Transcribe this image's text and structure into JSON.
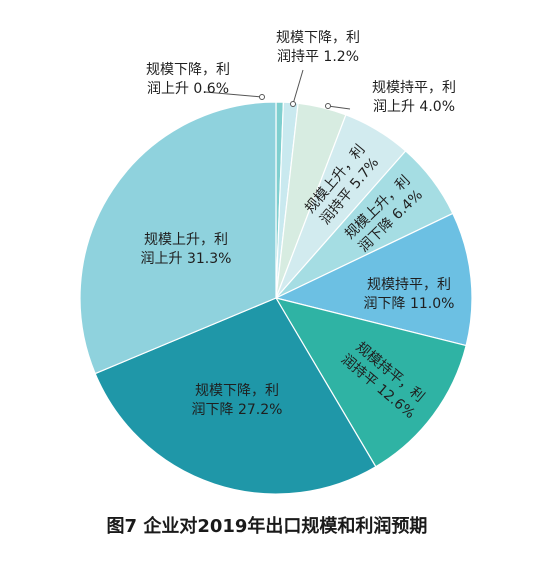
{
  "chart_data": {
    "type": "pie",
    "title": "图7  企业对2019年出口规模和利润预期",
    "slices": [
      {
        "line1": "规模下降，利",
        "line2": "润上升 0.6%",
        "value": 0.6,
        "color": "#7fcfcf"
      },
      {
        "line1": "规模下降，利",
        "line2": "润持平 1.2%",
        "value": 1.2,
        "color": "#c9e9ef"
      },
      {
        "line1": "规模持平，利",
        "line2": "润上升 4.0%",
        "value": 4.0,
        "color": "#d7ece1"
      },
      {
        "line1": "规模上升，利",
        "line2": "润持平 5.7%",
        "value": 5.7,
        "color": "#d2ebef"
      },
      {
        "line1": "规模上升，利",
        "line2": "润下降 6.4%",
        "value": 6.4,
        "color": "#a5dde3"
      },
      {
        "line1": "规模持平，利",
        "line2": "润下降 11.0%",
        "value": 11.0,
        "color": "#6cc0e3"
      },
      {
        "line1": "规模持平，利",
        "line2": "润持平 12.6%",
        "value": 12.6,
        "color": "#2fb3a4"
      },
      {
        "line1": "规模下降，利",
        "line2": "润下降 27.2%",
        "value": 27.2,
        "color": "#1f97a8"
      },
      {
        "line1": "规模上升，利",
        "line2": "润上升 31.3%",
        "value": 31.3,
        "color": "#8fd2dd"
      }
    ]
  }
}
